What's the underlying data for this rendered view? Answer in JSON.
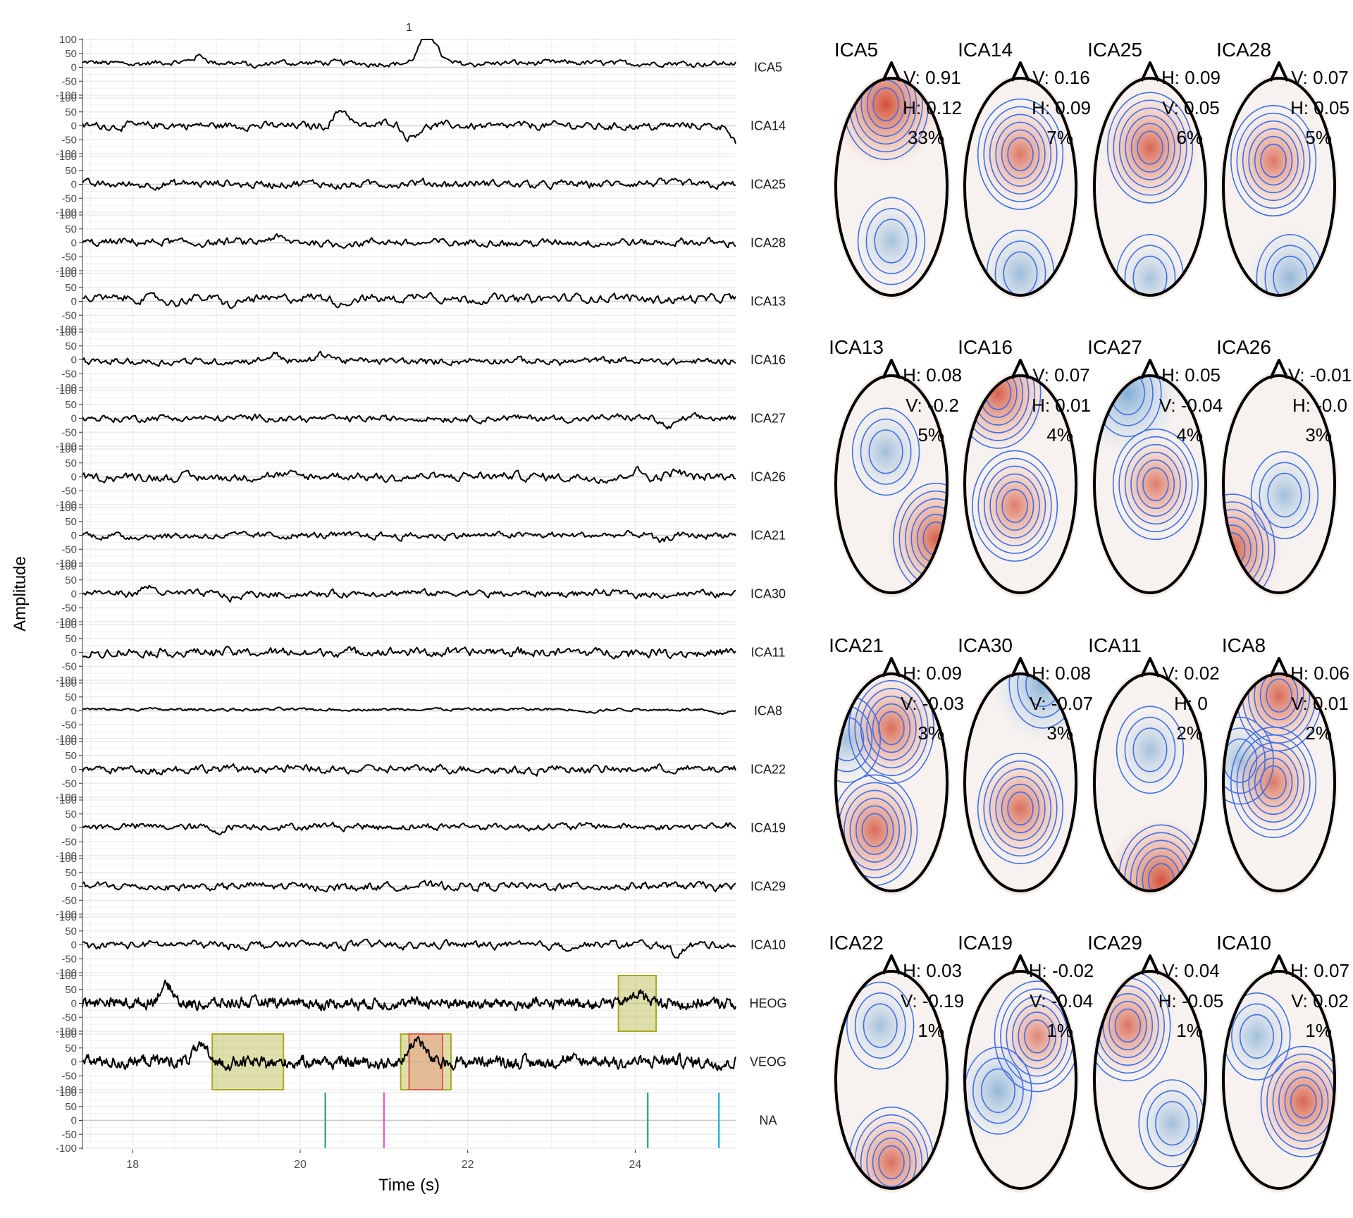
{
  "figure": {
    "facet_label": "1",
    "xlabel": "Time (s)",
    "ylabel": "Amplitude"
  },
  "chart_data": [
    {
      "type": "line",
      "title": "1",
      "xlabel": "Time (s)",
      "ylabel": "Amplitude",
      "xlim": [
        17.4,
        25.2
      ],
      "x_ticks": [
        18,
        20,
        22,
        24
      ],
      "y_ticks": [
        100,
        50,
        0,
        -50,
        -100
      ],
      "channels": [
        "ICA5",
        "ICA14",
        "ICA25",
        "ICA28",
        "ICA13",
        "ICA16",
        "ICA27",
        "ICA26",
        "ICA21",
        "ICA30",
        "ICA11",
        "ICA8",
        "ICA22",
        "ICA19",
        "ICA29",
        "ICA10",
        "HEOG",
        "VEOG",
        "NA"
      ],
      "channel_traces": {
        "ICA5": {
          "amp": 10,
          "offset": 15,
          "features": [
            {
              "t": 18.8,
              "v": 25
            },
            {
              "t": 19.5,
              "v": -15
            },
            {
              "t": 21.5,
              "v": 85
            },
            {
              "t": 21.6,
              "v": 40
            }
          ],
          "end_drift": 0
        },
        "ICA14": {
          "amp": 14,
          "offset": 0,
          "features": [
            {
              "t": 20.5,
              "v": 60
            },
            {
              "t": 21.3,
              "v": -40
            },
            {
              "t": 21.1,
              "v": 20
            }
          ],
          "end_drift": -60
        },
        "ICA25": {
          "amp": 14,
          "offset": 0,
          "features": [],
          "end_drift": 0
        },
        "ICA28": {
          "amp": 14,
          "offset": 0,
          "features": [
            {
              "t": 19.7,
              "v": 15
            }
          ],
          "end_drift": 0
        },
        "ICA13": {
          "amp": 15,
          "offset": 10,
          "features": [
            {
              "t": 18.5,
              "v": -20
            },
            {
              "t": 19.2,
              "v": -25
            },
            {
              "t": 20.5,
              "v": -20
            },
            {
              "t": 21.5,
              "v": 20
            }
          ],
          "end_drift": 0
        },
        "ICA16": {
          "amp": 12,
          "offset": -5,
          "features": [
            {
              "t": 19.7,
              "v": 25
            },
            {
              "t": 20.3,
              "v": 25
            }
          ],
          "end_drift": 0
        },
        "ICA27": {
          "amp": 12,
          "offset": 0,
          "features": [
            {
              "t": 24.4,
              "v": -35
            }
          ],
          "end_drift": 0
        },
        "ICA26": {
          "amp": 15,
          "offset": 0,
          "features": [
            {
              "t": 24,
              "v": 25
            },
            {
              "t": 24.5,
              "v": 25
            }
          ],
          "end_drift": 0
        },
        "ICA21": {
          "amp": 12,
          "offset": 0,
          "features": [
            {
              "t": 24.3,
              "v": -25
            }
          ],
          "end_drift": 0
        },
        "ICA30": {
          "amp": 12,
          "offset": 0,
          "features": [
            {
              "t": 18.2,
              "v": 20
            },
            {
              "t": 19.2,
              "v": -15
            }
          ],
          "end_drift": 0
        },
        "ICA11": {
          "amp": 16,
          "offset": 0,
          "features": [],
          "end_drift": 0
        },
        "ICA8": {
          "amp": 5,
          "offset": 5,
          "features": [
            {
              "t": 23.5,
              "v": -10
            },
            {
              "t": 25,
              "v": -15
            }
          ],
          "end_drift": 0
        },
        "ICA22": {
          "amp": 14,
          "offset": 0,
          "features": [],
          "end_drift": 0
        },
        "ICA19": {
          "amp": 12,
          "offset": 5,
          "features": [
            {
              "t": 19,
              "v": -15
            }
          ],
          "end_drift": 0
        },
        "ICA29": {
          "amp": 14,
          "offset": 0,
          "features": [],
          "end_drift": 0
        },
        "ICA10": {
          "amp": 14,
          "offset": 0,
          "features": [
            {
              "t": 24.5,
              "v": -30
            }
          ],
          "end_drift": 0
        },
        "HEOG": {
          "amp": 18,
          "offset": 0,
          "features": [
            {
              "t": 18.4,
              "v": 60
            },
            {
              "t": 24.05,
              "v": 40
            }
          ],
          "end_drift": 0
        },
        "VEOG": {
          "amp": 20,
          "offset": 0,
          "features": [
            {
              "t": 18.8,
              "v": 50
            },
            {
              "t": 21.4,
              "v": 80
            }
          ],
          "end_drift": 0
        },
        "NA": {
          "amp": 0,
          "offset": 0,
          "features": [],
          "end_drift": 0
        }
      },
      "event_markers": [
        {
          "t": 20.3,
          "color": "#1ea672"
        },
        {
          "t": 21.0,
          "color": "#e055e0"
        },
        {
          "t": 24.15,
          "color": "#1ea672"
        },
        {
          "t": 25.0,
          "color": "#1aaed8"
        }
      ],
      "highlight_boxes": [
        {
          "channel": "HEOG",
          "t0": 23.8,
          "t1": 24.25,
          "ymin": -100,
          "ymax": 100,
          "fill": "#b8b84a",
          "stroke": "#a8a820"
        },
        {
          "channel": "VEOG",
          "t0": 18.95,
          "t1": 19.8,
          "ymin": -100,
          "ymax": 100,
          "fill": "#b8b84a",
          "stroke": "#a8a820"
        },
        {
          "channel": "VEOG",
          "t0": 21.2,
          "t1": 21.8,
          "ymin": -100,
          "ymax": 100,
          "fill": "#b8b84a",
          "stroke": "#a8a820"
        },
        {
          "channel": "VEOG",
          "t0": 21.3,
          "t1": 21.7,
          "ymin": -100,
          "ymax": 100,
          "fill": "#e8907a",
          "stroke": "#e05a4a"
        }
      ]
    },
    {
      "type": "heatmap",
      "description": "topographic maps",
      "maps": [
        {
          "name": "ICA5",
          "l1": "V: 0.91",
          "l2": "H: 0.12",
          "l3": "33%",
          "hot": [
            {
              "u": 0.45,
              "v": 0.12,
              "w": 1.0
            }
          ],
          "cold": [
            {
              "u": 0.5,
              "v": 0.75,
              "w": 0.25
            }
          ]
        },
        {
          "name": "ICA14",
          "l1": "V: 0.16",
          "l2": "H: 0.09",
          "l3": "7%",
          "hot": [
            {
              "u": 0.5,
              "v": 0.35,
              "w": 0.55
            }
          ],
          "cold": [
            {
              "u": 0.5,
              "v": 0.9,
              "w": 0.4
            }
          ]
        },
        {
          "name": "ICA25",
          "l1": "H: 0.09",
          "l2": "V: 0.05",
          "l3": "6%",
          "hot": [
            {
              "u": 0.5,
              "v": 0.32,
              "w": 0.75
            }
          ],
          "cold": [
            {
              "u": 0.5,
              "v": 0.92,
              "w": 0.2
            }
          ]
        },
        {
          "name": "ICA28",
          "l1": "V: 0.07",
          "l2": "H: 0.05",
          "l3": "5%",
          "hot": [
            {
              "u": 0.45,
              "v": 0.38,
              "w": 0.55
            }
          ],
          "cold": [
            {
              "u": 0.6,
              "v": 0.92,
              "w": 0.5
            }
          ]
        },
        {
          "name": "ICA13",
          "l1": "H: 0.08",
          "l2": "V: -0.2",
          "l3": "5%",
          "hot": [
            {
              "u": 0.9,
              "v": 0.75,
              "w": 0.8
            }
          ],
          "cold": [
            {
              "u": 0.45,
              "v": 0.35,
              "w": 0.3
            }
          ]
        },
        {
          "name": "ICA16",
          "l1": "V: 0.07",
          "l2": "H: 0.01",
          "l3": "4%",
          "hot": [
            {
              "u": 0.3,
              "v": 0.08,
              "w": 0.8
            },
            {
              "u": 0.45,
              "v": 0.6,
              "w": 0.5
            }
          ],
          "cold": []
        },
        {
          "name": "ICA27",
          "l1": "H: 0.05",
          "l2": "V: -0.04",
          "l3": "4%",
          "hot": [
            {
              "u": 0.55,
              "v": 0.5,
              "w": 0.5
            }
          ],
          "cold": [
            {
              "u": 0.3,
              "v": 0.08,
              "w": 0.8
            }
          ]
        },
        {
          "name": "ICA26",
          "l1": "V: -0.01",
          "l2": "H: -0.0",
          "l3": "3%",
          "hot": [
            {
              "u": 0.08,
              "v": 0.8,
              "w": 0.85
            }
          ],
          "cold": [
            {
              "u": 0.55,
              "v": 0.55,
              "w": 0.3
            }
          ]
        },
        {
          "name": "ICA21",
          "l1": "H: 0.09",
          "l2": "V: -0.03",
          "l3": "3%",
          "hot": [
            {
              "u": 0.5,
              "v": 0.25,
              "w": 0.65
            },
            {
              "u": 0.35,
              "v": 0.72,
              "w": 0.7
            }
          ],
          "cold": [
            {
              "u": 0.1,
              "v": 0.3,
              "w": 0.3
            }
          ]
        },
        {
          "name": "ICA30",
          "l1": "H: 0.08",
          "l2": "V: -0.07",
          "l3": "3%",
          "hot": [
            {
              "u": 0.5,
              "v": 0.62,
              "w": 0.65
            }
          ],
          "cold": [
            {
              "u": 0.7,
              "v": 0.05,
              "w": 0.7
            }
          ]
        },
        {
          "name": "ICA11",
          "l1": "V: 0.02",
          "l2": "H: 0",
          "l3": "2%",
          "hot": [
            {
              "u": 0.6,
              "v": 0.95,
              "w": 0.95
            }
          ],
          "cold": [
            {
              "u": 0.5,
              "v": 0.35,
              "w": 0.25
            }
          ]
        },
        {
          "name": "ICA8",
          "l1": "H: 0.06",
          "l2": "V: 0.01",
          "l3": "2%",
          "hot": [
            {
              "u": 0.5,
              "v": 0.1,
              "w": 0.7
            },
            {
              "u": 0.45,
              "v": 0.5,
              "w": 0.55
            }
          ],
          "cold": [
            {
              "u": 0.15,
              "v": 0.4,
              "w": 0.3
            }
          ]
        },
        {
          "name": "ICA22",
          "l1": "H: 0.03",
          "l2": "V: -0.19",
          "l3": "1%",
          "hot": [
            {
              "u": 0.5,
              "v": 0.88,
              "w": 0.65
            }
          ],
          "cold": [
            {
              "u": 0.4,
              "v": 0.25,
              "w": 0.25
            }
          ]
        },
        {
          "name": "ICA19",
          "l1": "H: -0.02",
          "l2": "V: -0.04",
          "l3": "1%",
          "hot": [
            {
              "u": 0.65,
              "v": 0.3,
              "w": 0.4
            }
          ],
          "cold": [
            {
              "u": 0.3,
              "v": 0.55,
              "w": 0.5
            }
          ]
        },
        {
          "name": "ICA29",
          "l1": "V: 0.04",
          "l2": "H: -0.05",
          "l3": "1%",
          "hot": [
            {
              "u": 0.3,
              "v": 0.25,
              "w": 0.6
            }
          ],
          "cold": [
            {
              "u": 0.7,
              "v": 0.7,
              "w": 0.3
            }
          ]
        },
        {
          "name": "ICA10",
          "l1": "H: 0.07",
          "l2": "V: 0.02",
          "l3": "1%",
          "hot": [
            {
              "u": 0.72,
              "v": 0.6,
              "w": 0.75
            }
          ],
          "cold": [
            {
              "u": 0.3,
              "v": 0.3,
              "w": 0.3
            }
          ]
        }
      ]
    }
  ]
}
